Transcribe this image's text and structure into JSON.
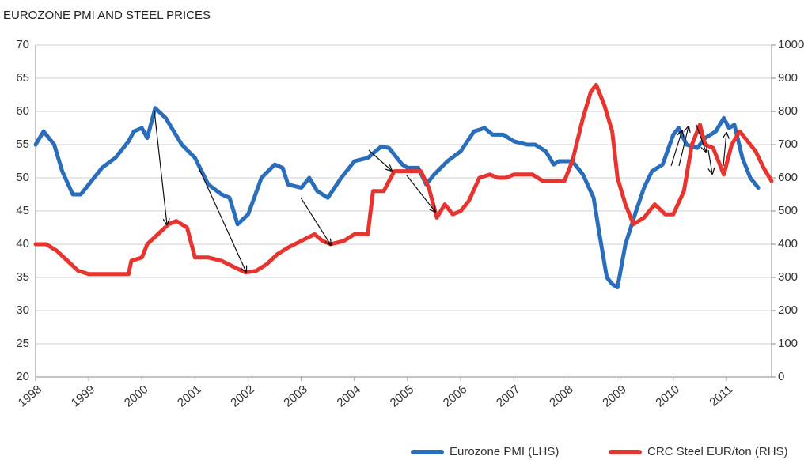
{
  "chart_data": {
    "type": "line",
    "title": "EUROZONE PMI AND STEEL PRICES",
    "xlim": [
      1998,
      2011.85
    ],
    "xticks": [
      1998,
      1999,
      2000,
      2001,
      2002,
      2003,
      2004,
      2005,
      2006,
      2007,
      2008,
      2009,
      2010,
      2011
    ],
    "ylim": [
      20,
      70
    ],
    "yticks": [
      20,
      25,
      30,
      35,
      40,
      45,
      50,
      55,
      60,
      65,
      70
    ],
    "y2lim": [
      0,
      1000
    ],
    "y2ticks": [
      0,
      100,
      200,
      300,
      400,
      500,
      600,
      700,
      800,
      900,
      1000
    ],
    "grid": true,
    "legend": "bottom-right",
    "series": [
      {
        "name": "Eurozone PMI (LHS)",
        "color": "#2a6ebb",
        "axis": "y",
        "x": [
          1998.0,
          1998.15,
          1998.35,
          1998.5,
          1998.7,
          1998.85,
          1999.0,
          1999.25,
          1999.5,
          1999.75,
          1999.85,
          2000.0,
          2000.1,
          2000.25,
          2000.45,
          2000.6,
          2000.75,
          2001.0,
          2001.25,
          2001.5,
          2001.65,
          2001.8,
          2002.0,
          2002.25,
          2002.5,
          2002.65,
          2002.75,
          2003.0,
          2003.15,
          2003.3,
          2003.5,
          2003.75,
          2004.0,
          2004.25,
          2004.5,
          2004.65,
          2004.9,
          2005.0,
          2005.2,
          2005.35,
          2005.5,
          2005.75,
          2006.0,
          2006.25,
          2006.45,
          2006.6,
          2006.8,
          2007.0,
          2007.25,
          2007.4,
          2007.6,
          2007.75,
          2007.85,
          2008.1,
          2008.3,
          2008.5,
          2008.6,
          2008.75,
          2008.85,
          2008.95,
          2009.1,
          2009.3,
          2009.45,
          2009.6,
          2009.8,
          2010.0,
          2010.1,
          2010.25,
          2010.45,
          2010.6,
          2010.8,
          2010.95,
          2011.05,
          2011.15,
          2011.3,
          2011.45,
          2011.6
        ],
        "values": [
          55,
          57,
          55,
          51,
          47.5,
          47.5,
          49,
          51.5,
          53,
          55.5,
          57,
          57.5,
          56,
          60.5,
          59,
          57,
          55,
          53,
          49,
          47.5,
          47,
          43,
          44.5,
          50,
          52,
          51.5,
          49,
          48.5,
          50,
          48,
          47,
          50,
          52.5,
          53,
          54.7,
          54.5,
          52,
          51.5,
          51.5,
          49,
          50.5,
          52.5,
          54,
          57,
          57.5,
          56.5,
          56.5,
          55.5,
          55,
          55,
          54,
          52,
          52.5,
          52.5,
          50.5,
          47,
          42,
          35,
          34,
          33.5,
          40,
          45,
          48.5,
          51,
          52,
          56.5,
          57.5,
          55,
          54.5,
          56,
          57,
          59,
          57.5,
          58,
          53,
          50,
          48.5
        ]
      },
      {
        "name": "CRC Steel EUR/ton (RHS)",
        "color": "#e8342e",
        "axis": "y2",
        "x": [
          1998.0,
          1998.2,
          1998.4,
          1998.6,
          1998.8,
          1999.0,
          1999.5,
          1999.75,
          1999.8,
          2000.0,
          2000.1,
          2000.3,
          2000.5,
          2000.65,
          2000.85,
          2001.0,
          2001.25,
          2001.5,
          2001.75,
          2001.95,
          2002.15,
          2002.35,
          2002.55,
          2002.75,
          2003.0,
          2003.25,
          2003.4,
          2003.55,
          2003.8,
          2004.0,
          2004.25,
          2004.35,
          2004.55,
          2004.75,
          2005.0,
          2005.25,
          2005.4,
          2005.55,
          2005.7,
          2005.85,
          2006.0,
          2006.15,
          2006.35,
          2006.55,
          2006.7,
          2006.85,
          2007.0,
          2007.35,
          2007.55,
          2007.75,
          2007.95,
          2008.1,
          2008.3,
          2008.45,
          2008.55,
          2008.7,
          2008.85,
          2008.95,
          2009.1,
          2009.25,
          2009.45,
          2009.65,
          2009.85,
          2010.0,
          2010.2,
          2010.35,
          2010.5,
          2010.6,
          2010.75,
          2010.95,
          2011.1,
          2011.25,
          2011.45,
          2011.55,
          2011.7,
          2011.85
        ],
        "values": [
          400,
          400,
          380,
          350,
          320,
          310,
          310,
          310,
          350,
          360,
          400,
          430,
          460,
          470,
          450,
          360,
          360,
          350,
          330,
          315,
          320,
          340,
          370,
          390,
          410,
          430,
          410,
          400,
          410,
          430,
          430,
          560,
          560,
          620,
          620,
          620,
          570,
          480,
          520,
          490,
          500,
          530,
          600,
          610,
          600,
          600,
          610,
          610,
          590,
          590,
          590,
          650,
          780,
          860,
          880,
          820,
          740,
          600,
          520,
          460,
          480,
          520,
          490,
          490,
          560,
          700,
          760,
          700,
          690,
          610,
          700,
          740,
          700,
          680,
          630,
          590
        ]
      }
    ]
  }
}
